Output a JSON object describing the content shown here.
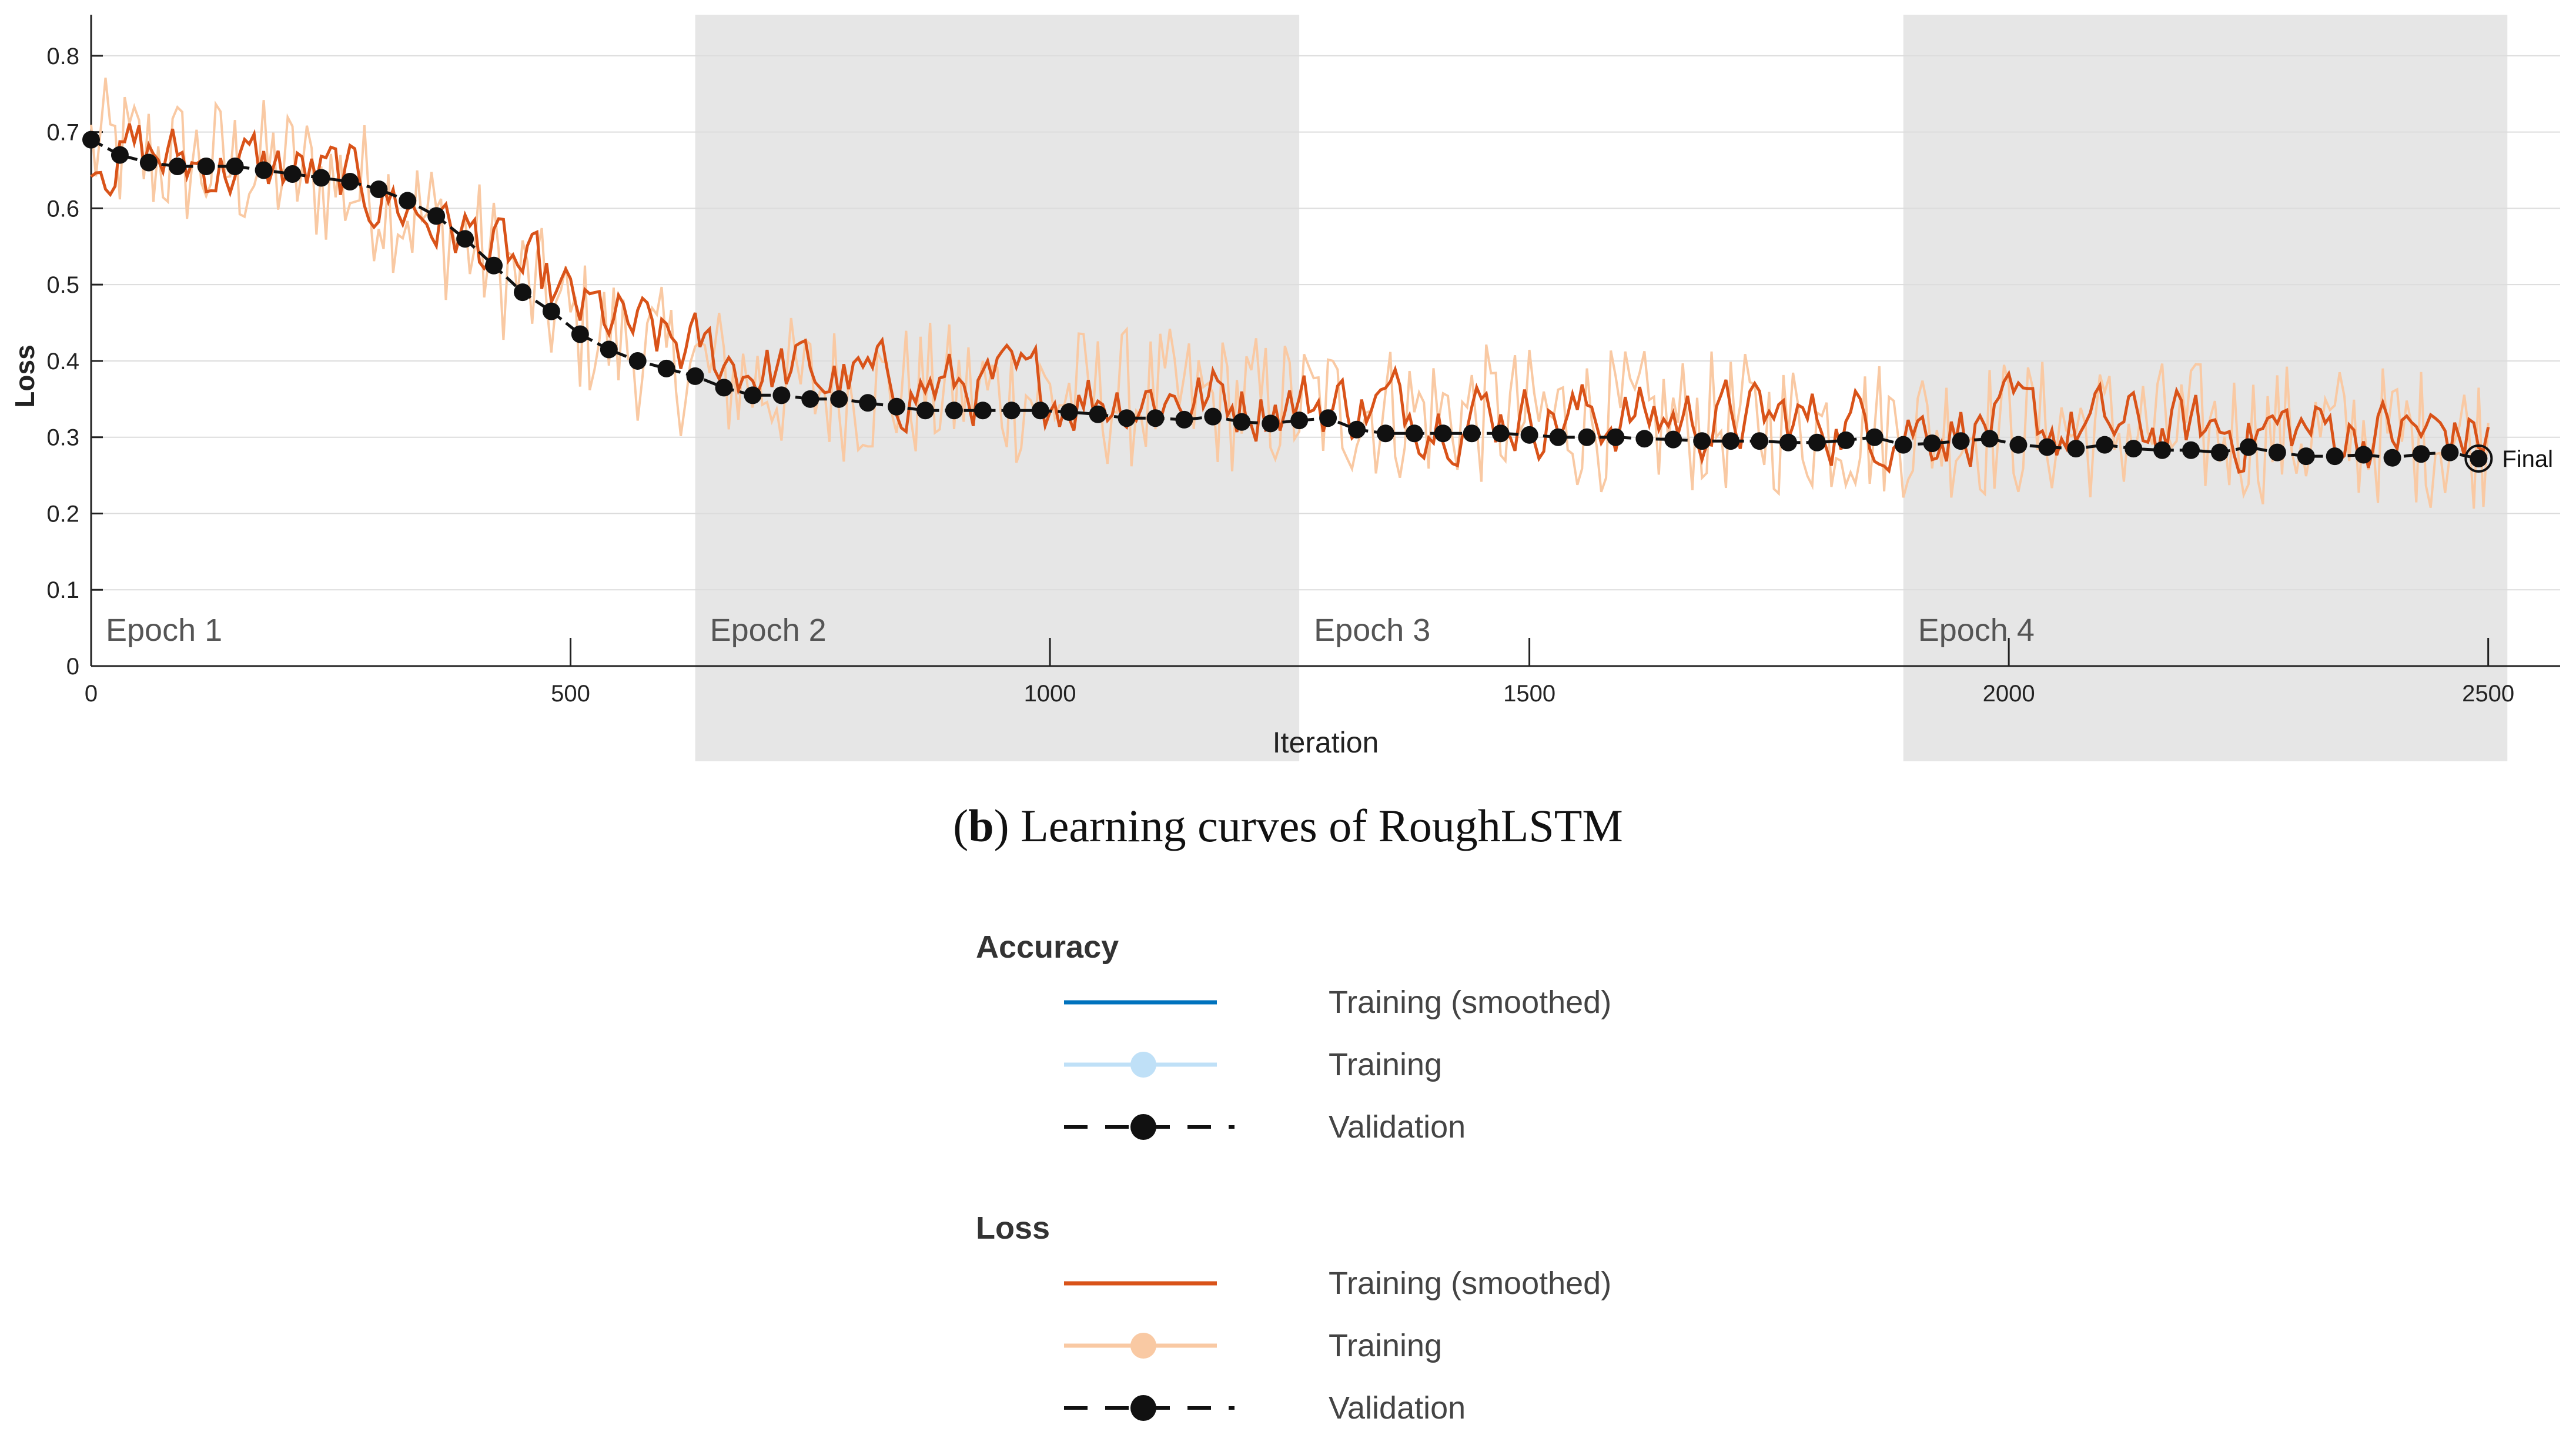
{
  "chart_data": {
    "type": "line",
    "title": "",
    "xlabel": "Iteration",
    "ylabel": "Loss",
    "xlim": [
      0,
      2575
    ],
    "ylim": [
      0,
      0.85
    ],
    "x_ticks": [
      0,
      500,
      1000,
      1500,
      2000,
      2500
    ],
    "y_ticks": [
      0,
      0.1,
      0.2,
      0.3,
      0.4,
      0.5,
      0.6,
      0.7,
      0.8
    ],
    "x_tick_labels": [
      "0",
      "500",
      "1000",
      "1500",
      "2000",
      "2500"
    ],
    "y_tick_labels": [
      "0",
      "0.1",
      "0.2",
      "0.3",
      "0.4",
      "0.5",
      "0.6",
      "0.7",
      "0.8"
    ],
    "grid": true,
    "epochs": [
      {
        "label": "Epoch 1",
        "start": 0,
        "end": 630,
        "shaded": false
      },
      {
        "label": "Epoch 2",
        "start": 630,
        "end": 1260,
        "shaded": true
      },
      {
        "label": "Epoch 3",
        "start": 1260,
        "end": 1890,
        "shaded": false
      },
      {
        "label": "Epoch 4",
        "start": 1890,
        "end": 2520,
        "shaded": true
      }
    ],
    "final_label": "Final",
    "final_point": {
      "x": 2490,
      "y": 0.272
    },
    "series": [
      {
        "name": "Training",
        "color": "#f9c9a3",
        "x_step": 5,
        "trend_x": [
          0,
          100,
          200,
          300,
          400,
          500,
          600,
          700,
          800,
          1000,
          1200,
          1500,
          1800,
          2100,
          2300,
          2500
        ],
        "trend_y": [
          0.68,
          0.66,
          0.65,
          0.62,
          0.55,
          0.45,
          0.4,
          0.37,
          0.36,
          0.355,
          0.345,
          0.325,
          0.315,
          0.31,
          0.305,
          0.3
        ],
        "noise": 0.095
      },
      {
        "name": "Training (smoothed)",
        "color": "#d95319",
        "x_step": 5,
        "trend_x": [
          0,
          100,
          200,
          300,
          400,
          500,
          600,
          700,
          800,
          1000,
          1200,
          1500,
          1800,
          2100,
          2300,
          2500
        ],
        "trend_y": [
          0.68,
          0.66,
          0.65,
          0.62,
          0.56,
          0.47,
          0.42,
          0.39,
          0.37,
          0.36,
          0.35,
          0.33,
          0.32,
          0.31,
          0.31,
          0.3
        ],
        "noise": 0.045
      },
      {
        "name": "Validation",
        "color": "#111111",
        "x": [
          0,
          30,
          60,
          90,
          120,
          150,
          180,
          210,
          240,
          270,
          300,
          330,
          360,
          390,
          420,
          450,
          480,
          510,
          540,
          570,
          600,
          630,
          660,
          690,
          720,
          750,
          780,
          810,
          840,
          870,
          900,
          930,
          960,
          990,
          1020,
          1050,
          1080,
          1110,
          1140,
          1170,
          1200,
          1230,
          1260,
          1290,
          1320,
          1350,
          1380,
          1410,
          1440,
          1470,
          1500,
          1530,
          1560,
          1590,
          1620,
          1650,
          1680,
          1710,
          1740,
          1770,
          1800,
          1830,
          1860,
          1890,
          1920,
          1950,
          1980,
          2010,
          2040,
          2070,
          2100,
          2130,
          2160,
          2190,
          2220,
          2250,
          2280,
          2310,
          2340,
          2370,
          2400,
          2430,
          2460,
          2490
        ],
        "values": [
          0.69,
          0.67,
          0.66,
          0.655,
          0.655,
          0.655,
          0.65,
          0.645,
          0.64,
          0.635,
          0.625,
          0.61,
          0.59,
          0.56,
          0.525,
          0.49,
          0.465,
          0.435,
          0.415,
          0.4,
          0.39,
          0.38,
          0.365,
          0.355,
          0.355,
          0.35,
          0.35,
          0.345,
          0.34,
          0.335,
          0.335,
          0.335,
          0.335,
          0.335,
          0.333,
          0.33,
          0.325,
          0.325,
          0.323,
          0.327,
          0.32,
          0.318,
          0.322,
          0.325,
          0.31,
          0.305,
          0.305,
          0.305,
          0.305,
          0.305,
          0.303,
          0.3,
          0.3,
          0.3,
          0.298,
          0.297,
          0.295,
          0.295,
          0.295,
          0.293,
          0.293,
          0.296,
          0.3,
          0.29,
          0.292,
          0.295,
          0.298,
          0.29,
          0.287,
          0.285,
          0.29,
          0.285,
          0.283,
          0.283,
          0.28,
          0.287,
          0.28,
          0.275,
          0.275,
          0.277,
          0.273,
          0.278,
          0.28,
          0.272
        ]
      }
    ]
  },
  "caption": {
    "letter": "b",
    "text": ") Learning curves of RoughLSTM",
    "open": "("
  },
  "legend": {
    "accuracy": {
      "heading": "Accuracy",
      "items": [
        {
          "label": "Training (smoothed)",
          "color": "#0072bd",
          "marker": false,
          "dashed": false
        },
        {
          "label": "Training",
          "color": "#bfe0f7",
          "marker": true,
          "dashed": false
        },
        {
          "label": "Validation",
          "color": "#111111",
          "marker": true,
          "dashed": true
        }
      ]
    },
    "loss": {
      "heading": "Loss",
      "items": [
        {
          "label": "Training (smoothed)",
          "color": "#d95319",
          "marker": false,
          "dashed": false
        },
        {
          "label": "Training",
          "color": "#f9c9a3",
          "marker": true,
          "dashed": false
        },
        {
          "label": "Validation",
          "color": "#111111",
          "marker": true,
          "dashed": true
        }
      ]
    }
  }
}
